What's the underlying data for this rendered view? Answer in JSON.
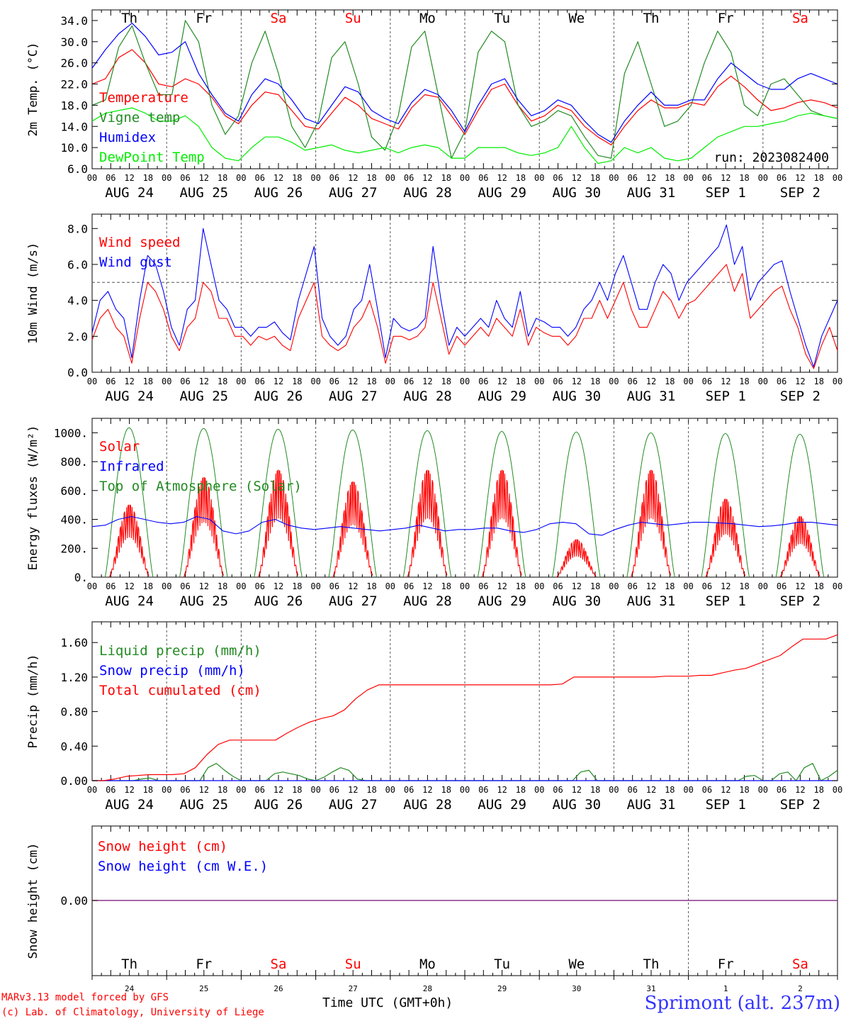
{
  "chart_data": [
    {
      "type": "line",
      "id": "temp",
      "ylabel": "2m Temp. (°C)",
      "ylim": [
        6,
        36
      ],
      "yticks": [
        6.0,
        10.0,
        14.0,
        18.0,
        22.0,
        26.0,
        30.0,
        34.0
      ],
      "run_label": "run: 2023082400",
      "grid": "vertical dashed at day boundaries",
      "legend_position": "left",
      "series": [
        {
          "name": "Temperature",
          "color": "#ff0000",
          "values": [
            22,
            23,
            27,
            28.5,
            26,
            22,
            21.5,
            23,
            22,
            19.5,
            16,
            14.5,
            18,
            20.5,
            20,
            17,
            14,
            13.5,
            16.5,
            19.5,
            18,
            15.5,
            14.5,
            13.5,
            17.5,
            20,
            19.5,
            16,
            12.5,
            17,
            21,
            22,
            18,
            15,
            16,
            18,
            17,
            14,
            12,
            10.5,
            14,
            17,
            19,
            17.5,
            17.5,
            18.5,
            18,
            21.5,
            23.5,
            21.5,
            19,
            17,
            17.5,
            18.5,
            19,
            18.5,
            17.5
          ]
        },
        {
          "name": "Vigne temp",
          "color": "#228b22",
          "values": [
            18,
            19,
            29,
            33,
            26,
            20,
            20,
            34,
            30,
            18,
            12.5,
            16,
            26,
            32,
            24,
            14,
            10,
            15,
            27,
            30,
            22,
            12,
            9.5,
            16,
            29,
            32,
            20,
            8,
            13,
            28,
            32,
            30,
            18,
            14,
            15,
            17,
            16,
            12,
            8.5,
            8,
            24,
            30,
            22,
            14,
            15,
            18,
            26,
            32,
            28,
            18,
            16,
            22,
            23,
            20,
            17,
            16,
            15.5
          ]
        },
        {
          "name": "Humidex",
          "color": "#0000ff",
          "values": [
            25,
            28.5,
            31.5,
            33.5,
            31,
            27.5,
            28,
            30,
            24,
            20,
            16.5,
            15,
            20,
            23,
            22,
            19,
            15.5,
            14.5,
            18,
            21.5,
            20.5,
            17,
            15.5,
            14.5,
            18.5,
            21,
            20,
            17,
            13,
            18,
            22,
            23,
            19,
            16,
            17,
            19,
            18,
            15,
            12.5,
            11,
            15,
            18,
            20.5,
            18,
            18,
            19,
            19,
            23,
            26,
            24,
            22,
            21,
            21,
            23,
            24,
            23,
            22
          ]
        },
        {
          "name": "DewPoint Temp",
          "color": "#00ee00",
          "values": [
            15,
            16.5,
            17,
            17.5,
            16.5,
            15,
            15,
            16,
            14,
            10,
            8,
            7.5,
            10,
            12,
            12,
            11,
            9.5,
            10,
            10.5,
            9.5,
            9,
            9.5,
            10,
            9,
            10,
            10.5,
            10,
            8,
            8,
            10,
            10,
            10,
            9,
            8.5,
            9,
            10,
            14,
            10,
            7,
            7.5,
            10,
            9,
            10,
            8,
            7.5,
            8,
            10,
            12,
            13,
            14,
            14,
            14.5,
            15,
            16,
            16.5,
            16,
            15.5
          ]
        }
      ]
    },
    {
      "type": "line",
      "id": "wind",
      "ylabel": "10m Wind (m/s)",
      "ylim": [
        0,
        8.8
      ],
      "yticks": [
        0.0,
        2.0,
        4.0,
        6.0,
        8.0
      ],
      "reference_line": 5,
      "grid": "vertical dashed at day boundaries",
      "legend_position": "left",
      "series": [
        {
          "name": "Wind speed",
          "color": "#ff0000",
          "values": [
            1.8,
            3,
            3.5,
            2.5,
            2,
            0.5,
            3,
            5,
            4.5,
            3.5,
            2,
            1.2,
            2.5,
            3,
            5,
            4.5,
            3,
            3,
            2,
            2,
            1.5,
            2,
            1.8,
            2,
            1.5,
            1.2,
            3,
            4,
            5,
            2,
            1.5,
            1.2,
            1.5,
            2.5,
            3,
            4,
            2.5,
            0.5,
            2,
            2,
            1.8,
            2,
            2.5,
            5,
            3,
            1,
            2,
            1.5,
            2,
            2.5,
            2,
            3,
            2.5,
            2,
            3.5,
            1.5,
            2.5,
            2.2,
            2,
            2,
            1.5,
            2,
            3,
            3,
            4,
            3,
            4,
            5,
            3.5,
            2.5,
            2.5,
            3.5,
            4.5,
            4,
            3,
            3.8,
            4,
            4.5,
            5,
            5.5,
            6,
            4.5,
            5.5,
            3,
            3.5,
            4,
            4.5,
            4.8,
            3.5,
            2.5,
            1,
            0.2,
            1.5,
            2.5,
            1.2
          ]
        },
        {
          "name": "Wind gust",
          "color": "#0000ff",
          "values": [
            2.2,
            4,
            4.5,
            3.5,
            3,
            0.8,
            4,
            6.5,
            6,
            4.5,
            2.5,
            1.5,
            3.5,
            4,
            8,
            6,
            4,
            3.5,
            2.5,
            2.5,
            2,
            2.5,
            2.5,
            2.8,
            2.2,
            1.8,
            4,
            5.5,
            7,
            3,
            2,
            1.5,
            2,
            3.5,
            4,
            6,
            3.5,
            0.8,
            3,
            2.5,
            2.3,
            2.5,
            3,
            7,
            4,
            1.5,
            2.5,
            2,
            2.5,
            3,
            2.5,
            4,
            3,
            2.5,
            4.5,
            2,
            3,
            2.8,
            2.5,
            2.5,
            2,
            2.5,
            3.5,
            4,
            5,
            4,
            5.5,
            6.5,
            5,
            3.5,
            3.5,
            5,
            6,
            5.5,
            4,
            5,
            5.5,
            6,
            6.5,
            7,
            8.2,
            6,
            7,
            4,
            5,
            5.5,
            6,
            6.2,
            4.5,
            3,
            1.5,
            0.3,
            2,
            3,
            4
          ]
        }
      ]
    },
    {
      "type": "line",
      "id": "flux",
      "ylabel": "Energy fluxes (W/m²)",
      "ylim": [
        0,
        1100
      ],
      "yticks": [
        0,
        200,
        400,
        600,
        800,
        1000
      ],
      "ytick_labels": [
        "0.",
        "200.",
        "400.",
        "600.",
        "800.",
        "1000."
      ],
      "grid": "vertical dashed at day boundaries",
      "legend_position": "left",
      "series": [
        {
          "name": "Solar",
          "color": "#ff0000",
          "daily_peaks": [
            500,
            690,
            740,
            660,
            740,
            740,
            260,
            740,
            540,
            420
          ]
        },
        {
          "name": "Infrared",
          "color": "#0000ff",
          "values": [
            350,
            360,
            400,
            420,
            400,
            380,
            370,
            380,
            420,
            400,
            320,
            300,
            320,
            380,
            400,
            360,
            340,
            330,
            340,
            350,
            340,
            330,
            320,
            330,
            340,
            360,
            340,
            320,
            330,
            330,
            340,
            340,
            320,
            310,
            330,
            370,
            380,
            370,
            300,
            290,
            330,
            360,
            380,
            370,
            360,
            370,
            380,
            380,
            375,
            370,
            360,
            350,
            355,
            365,
            380,
            380,
            370,
            360
          ]
        },
        {
          "name": "Top of Atmosphere (Solar)",
          "color": "#228b22",
          "daily_peaks": [
            1035,
            1030,
            1025,
            1020,
            1015,
            1010,
            1005,
            1000,
            995,
            990
          ]
        }
      ]
    },
    {
      "type": "line",
      "id": "precip",
      "ylabel": "Precip (mm/h)",
      "ylim": [
        0,
        1.84
      ],
      "yticks": [
        0.0,
        0.4,
        0.8,
        1.2,
        1.6
      ],
      "grid": "vertical dashed at day boundaries",
      "legend_position": "left",
      "series": [
        {
          "name": "Liquid precip (mm/h)",
          "color": "#228b22",
          "values": [
            0,
            0,
            0,
            0,
            0,
            0,
            0.02,
            0.03,
            0,
            0,
            0,
            0,
            0,
            0,
            0.15,
            0.2,
            0.12,
            0.05,
            0,
            0,
            0,
            0,
            0.08,
            0.1,
            0.08,
            0.06,
            0.02,
            0,
            0.04,
            0.1,
            0.15,
            0.12,
            0.02,
            0,
            0,
            0,
            0,
            0,
            0,
            0,
            0,
            0,
            0,
            0,
            0,
            0,
            0,
            0,
            0,
            0,
            0,
            0,
            0,
            0,
            0,
            0,
            0,
            0,
            0,
            0.1,
            0.12,
            0,
            0,
            0,
            0,
            0,
            0,
            0,
            0,
            0,
            0,
            0,
            0,
            0,
            0,
            0,
            0,
            0,
            0,
            0.05,
            0.06,
            0,
            0,
            0.08,
            0.1,
            0,
            0.15,
            0.2,
            0,
            0.05,
            0.12
          ]
        },
        {
          "name": "Snow precip (mm/h)",
          "color": "#0000ff",
          "values": [
            0
          ]
        },
        {
          "name": "Total cumulated (cm)",
          "color": "#ff0000",
          "values": [
            0,
            0,
            0.02,
            0.05,
            0.06,
            0.07,
            0.07,
            0.07,
            0.08,
            0.15,
            0.3,
            0.42,
            0.47,
            0.47,
            0.47,
            0.47,
            0.47,
            0.55,
            0.62,
            0.68,
            0.72,
            0.75,
            0.82,
            0.95,
            1.05,
            1.11,
            1.11,
            1.11,
            1.11,
            1.11,
            1.11,
            1.11,
            1.11,
            1.11,
            1.11,
            1.11,
            1.11,
            1.11,
            1.11,
            1.11,
            1.11,
            1.12,
            1.2,
            1.2,
            1.2,
            1.2,
            1.2,
            1.2,
            1.2,
            1.2,
            1.21,
            1.21,
            1.21,
            1.22,
            1.22,
            1.25,
            1.28,
            1.3,
            1.35,
            1.4,
            1.45,
            1.55,
            1.64,
            1.64,
            1.64,
            1.69
          ]
        }
      ]
    },
    {
      "type": "line",
      "id": "snow",
      "ylabel": "Snow height (cm)",
      "yticks": [
        0.0
      ],
      "ytick_labels": [
        "0.00"
      ],
      "grid": "vertical dashed at SEP 1",
      "legend_position": "left",
      "series": [
        {
          "name": "Snow height (cm)",
          "color": "#ff0000",
          "values": [
            0
          ]
        },
        {
          "name": "Snow height (cm W.E.)",
          "color": "#0000ff",
          "values": [
            0
          ]
        }
      ]
    }
  ],
  "axis": {
    "hour_labels": [
      "00",
      "06",
      "12",
      "18"
    ],
    "final_hour_label": "00",
    "dates": [
      "AUG 24",
      "AUG 25",
      "AUG 26",
      "AUG 27",
      "AUG 28",
      "AUG 29",
      "AUG 30",
      "AUG 31",
      "SEP  1",
      "SEP  2"
    ],
    "weekdays": [
      "Th",
      "Fr",
      "Sa",
      "Su",
      "Mo",
      "Tu",
      "We",
      "Th",
      "Fr",
      "Sa"
    ],
    "weekend_color": "#ff0000",
    "day_numbers": [
      "24",
      "25",
      "26",
      "27",
      "28",
      "29",
      "30",
      "31",
      "1",
      "2"
    ]
  },
  "footer": {
    "model_line": "MARv3.13 model forced by GFS",
    "credit_line": "(c) Lab. of Climatology, University of Liege",
    "time_label": "Time UTC (GMT+0h)",
    "site_label": "Sprimont (alt. 237m)"
  }
}
